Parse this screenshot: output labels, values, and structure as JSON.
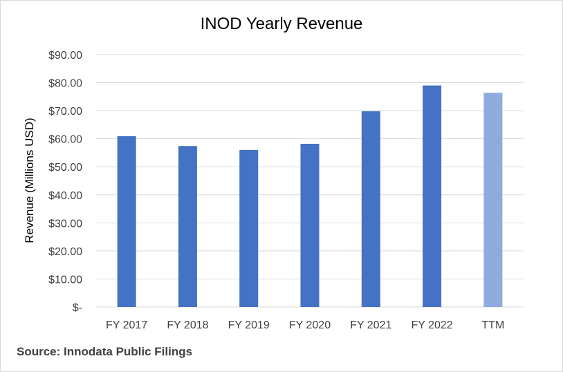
{
  "chart_data": {
    "type": "bar",
    "title": "INOD Yearly Revenue",
    "xlabel": "",
    "ylabel": "Revenue (Millions USD)",
    "categories": [
      "FY 2017",
      "FY 2018",
      "FY 2019",
      "FY 2020",
      "FY 2021",
      "FY 2022",
      "TTM"
    ],
    "values": [
      60.9,
      57.4,
      56.0,
      58.2,
      69.8,
      79.0,
      76.4
    ],
    "ylim": [
      0,
      90
    ],
    "yticks": [
      0,
      10,
      20,
      30,
      40,
      50,
      60,
      70,
      80,
      90
    ],
    "ytick_labels": [
      "$-",
      "$10.00",
      "$20.00",
      "$30.00",
      "$40.00",
      "$50.00",
      "$60.00",
      "$70.00",
      "$80.00",
      "$90.00"
    ],
    "grid": true,
    "legend": "none",
    "colors": {
      "bar": "#4472c4",
      "bar_highlight": "#8faadc",
      "grid": "#d9d9d9",
      "tick_text": "#404040"
    },
    "highlight_category": "TTM"
  },
  "footer": {
    "source": "Source: Innodata Public Filings"
  }
}
